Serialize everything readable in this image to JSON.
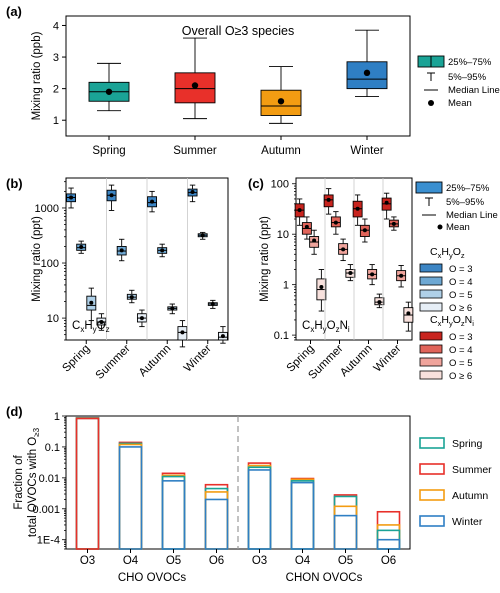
{
  "panel_labels": {
    "a": "(a)",
    "b": "(b)",
    "c": "(c)",
    "d": "(d)"
  },
  "legend_a": {
    "box": "25%–75%",
    "whisker": "5%–95%",
    "median": "Median Line",
    "mean": "Mean",
    "box_color": "#1aa396"
  },
  "legend_c": {
    "box": "25%–75%",
    "whisker": "5%–95%",
    "median": "Median Line",
    "mean": "Mean",
    "box_color": "#3a8fd0",
    "cho_title": "CₓHᵧO_z",
    "chon_title": "CₓHᵧO_zNᵢ",
    "cho_items": [
      {
        "label": "O = 3",
        "color": "#3c85c4"
      },
      {
        "label": "O = 4",
        "color": "#6ea8d3"
      },
      {
        "label": "O = 5",
        "color": "#afd0e8"
      },
      {
        "label": "O ≥ 6",
        "color": "#e6eef6"
      }
    ],
    "chon_items": [
      {
        "label": "O = 3",
        "color": "#c8241e"
      },
      {
        "label": "O = 4",
        "color": "#e0645a"
      },
      {
        "label": "O = 5",
        "color": "#f0a49c"
      },
      {
        "label": "O ≥ 6",
        "color": "#f8e1dd"
      }
    ]
  },
  "legend_d": [
    {
      "label": "Spring",
      "color": "#1aa396"
    },
    {
      "label": "Summer",
      "color": "#e8302a"
    },
    {
      "label": "Autumn",
      "color": "#f39c12"
    },
    {
      "label": "Winter",
      "color": "#2f7fc4"
    }
  ],
  "chart_data": [
    {
      "id": "a",
      "type": "box",
      "title": "Overall O≥3 species",
      "ylabel": "Mixing ratio (ppb)",
      "ylim": [
        0.5,
        4.3
      ],
      "yticks": [
        1,
        2,
        3,
        4
      ],
      "categories": [
        "Spring",
        "Summer",
        "Autumn",
        "Winter"
      ],
      "colors": [
        "#1aa396",
        "#e8302a",
        "#f39c12",
        "#2f7fc4"
      ],
      "boxes": [
        {
          "p5": 1.3,
          "q1": 1.6,
          "median": 1.9,
          "q3": 2.2,
          "p95": 2.8,
          "mean": 1.9
        },
        {
          "p5": 1.05,
          "q1": 1.55,
          "median": 2.0,
          "q3": 2.5,
          "p95": 3.6,
          "mean": 2.1
        },
        {
          "p5": 0.9,
          "q1": 1.15,
          "median": 1.45,
          "q3": 1.95,
          "p95": 2.7,
          "mean": 1.6
        },
        {
          "p5": 1.75,
          "q1": 2.0,
          "median": 2.3,
          "q3": 2.85,
          "p95": 3.85,
          "mean": 2.5
        }
      ]
    },
    {
      "id": "b",
      "type": "box",
      "scale": "log",
      "ylabel": "Mixing ratio (ppt)",
      "annotation": "CₓHᵧO_z",
      "ylim": [
        4,
        3500
      ],
      "yticks": [
        10,
        100,
        1000
      ],
      "ytick_labels": [
        "10",
        "100",
        "1000"
      ],
      "categories": [
        "Spring",
        "Summer",
        "Autumn",
        "Winter"
      ],
      "series": [
        {
          "name": "O = 3",
          "color": "#3c85c4",
          "boxes": [
            {
              "p5": 1000,
              "q1": 1300,
              "median": 1550,
              "q3": 1800,
              "p95": 2300,
              "mean": 1550
            },
            {
              "p5": 900,
              "q1": 1350,
              "median": 1700,
              "q3": 2100,
              "p95": 2600,
              "mean": 1700
            },
            {
              "p5": 850,
              "q1": 1050,
              "median": 1250,
              "q3": 1600,
              "p95": 2000,
              "mean": 1300
            },
            {
              "p5": 1300,
              "q1": 1650,
              "median": 1900,
              "q3": 2200,
              "p95": 2600,
              "mean": 1950
            }
          ]
        },
        {
          "name": "O = 4",
          "color": "#6ea8d3",
          "boxes": [
            {
              "p5": 150,
              "q1": 170,
              "median": 190,
              "q3": 220,
              "p95": 250,
              "mean": 195
            },
            {
              "p5": 110,
              "q1": 140,
              "median": 165,
              "q3": 200,
              "p95": 270,
              "mean": 170
            },
            {
              "p5": 130,
              "q1": 150,
              "median": 170,
              "q3": 190,
              "p95": 220,
              "mean": 170
            },
            {
              "p5": 270,
              "q1": 300,
              "median": 320,
              "q3": 340,
              "p95": 360,
              "mean": 320
            }
          ]
        },
        {
          "name": "O = 5",
          "color": "#afd0e8",
          "boxes": [
            {
              "p5": 9,
              "q1": 14,
              "median": 17,
              "q3": 25,
              "p95": 35,
              "mean": 19
            },
            {
              "p5": 19,
              "q1": 22,
              "median": 24,
              "q3": 27,
              "p95": 32,
              "mean": 24
            },
            {
              "p5": 12,
              "q1": 14,
              "median": 15,
              "q3": 16,
              "p95": 18,
              "mean": 15
            },
            {
              "p5": 15,
              "q1": 17,
              "median": 18,
              "q3": 19,
              "p95": 21,
              "mean": 18
            }
          ]
        },
        {
          "name": "O ≥ 6",
          "color": "#e6eef6",
          "boxes": [
            {
              "p5": 6,
              "q1": 7.5,
              "median": 8.5,
              "q3": 10,
              "p95": 12,
              "mean": 8.5
            },
            {
              "p5": 7,
              "q1": 8.5,
              "median": 10,
              "q3": 12,
              "p95": 14,
              "mean": 10
            },
            {
              "p5": 3,
              "q1": 4,
              "median": 5.5,
              "q3": 7,
              "p95": 9,
              "mean": 5.5
            },
            {
              "p5": 3.5,
              "q1": 4,
              "median": 4.5,
              "q3": 5.5,
              "p95": 7,
              "mean": 4.7
            }
          ]
        }
      ]
    },
    {
      "id": "c",
      "type": "box",
      "scale": "log",
      "ylabel": "Mixing ratio (ppt)",
      "annotation": "CₓHᵧO_zNᵢ",
      "ylim": [
        0.08,
        130
      ],
      "yticks": [
        0.1,
        1,
        10,
        100
      ],
      "ytick_labels": [
        "0.1",
        "1",
        "10",
        "100"
      ],
      "categories": [
        "Spring",
        "Summer",
        "Autumn",
        "Winter"
      ],
      "series": [
        {
          "name": "O = 3",
          "color": "#c8241e",
          "boxes": [
            {
              "p5": 15,
              "q1": 22,
              "median": 30,
              "q3": 40,
              "p95": 50,
              "mean": 30
            },
            {
              "p5": 25,
              "q1": 35,
              "median": 48,
              "q3": 60,
              "p95": 80,
              "mean": 48
            },
            {
              "p5": 15,
              "q1": 22,
              "median": 32,
              "q3": 45,
              "p95": 60,
              "mean": 32
            },
            {
              "p5": 20,
              "q1": 30,
              "median": 40,
              "q3": 52,
              "p95": 65,
              "mean": 42
            }
          ]
        },
        {
          "name": "O = 4",
          "color": "#e0645a",
          "boxes": [
            {
              "p5": 8,
              "q1": 10,
              "median": 13,
              "q3": 17,
              "p95": 22,
              "mean": 14
            },
            {
              "p5": 10,
              "q1": 14,
              "median": 17,
              "q3": 22,
              "p95": 28,
              "mean": 17
            },
            {
              "p5": 7,
              "q1": 9,
              "median": 12,
              "q3": 15,
              "p95": 20,
              "mean": 12
            },
            {
              "p5": 12,
              "q1": 14,
              "median": 16,
              "q3": 19,
              "p95": 22,
              "mean": 16
            }
          ]
        },
        {
          "name": "O = 5",
          "color": "#f0a49c",
          "boxes": [
            {
              "p5": 4,
              "q1": 5.5,
              "median": 7,
              "q3": 9,
              "p95": 12,
              "mean": 7.5
            },
            {
              "p5": 3,
              "q1": 4,
              "median": 5,
              "q3": 6.5,
              "p95": 8,
              "mean": 5
            },
            {
              "p5": 1,
              "q1": 1.3,
              "median": 1.6,
              "q3": 2,
              "p95": 2.5,
              "mean": 1.6
            },
            {
              "p5": 0.9,
              "q1": 1.2,
              "median": 1.5,
              "q3": 1.9,
              "p95": 2.4,
              "mean": 1.5
            }
          ]
        },
        {
          "name": "O ≥ 6",
          "color": "#f8e1dd",
          "boxes": [
            {
              "p5": 0.3,
              "q1": 0.5,
              "median": 0.8,
              "q3": 1.3,
              "p95": 2.0,
              "mean": 0.9
            },
            {
              "p5": 1.2,
              "q1": 1.4,
              "median": 1.7,
              "q3": 2.0,
              "p95": 2.5,
              "mean": 1.7
            },
            {
              "p5": 0.35,
              "q1": 0.4,
              "median": 0.45,
              "q3": 0.55,
              "p95": 0.65,
              "mean": 0.45
            },
            {
              "p5": 0.12,
              "q1": 0.18,
              "median": 0.25,
              "q3": 0.35,
              "p95": 0.45,
              "mean": 0.27
            }
          ]
        }
      ]
    },
    {
      "id": "d",
      "type": "bar",
      "scale": "log",
      "ylabel": "Fraction of total OVOCs with O≥3",
      "ylim": [
        5e-05,
        1
      ],
      "yticks": [
        0.0001,
        0.001,
        0.01,
        0.1,
        1
      ],
      "ytick_labels": [
        "1E-4",
        "0.001",
        "0.01",
        "0.1",
        "1"
      ],
      "categories": [
        "O3",
        "O4",
        "O5",
        "O6",
        "O3",
        "O4",
        "O5",
        "O6"
      ],
      "groups": [
        "CHO OVOCs",
        "CHON OVOCs"
      ],
      "series": [
        {
          "name": "Spring",
          "color": "#1aa396",
          "values": [
            0.84,
            0.13,
            0.011,
            0.0045,
            0.022,
            0.008,
            0.0025,
            0.0002
          ]
        },
        {
          "name": "Summer",
          "color": "#e8302a",
          "values": [
            0.83,
            0.14,
            0.014,
            0.006,
            0.03,
            0.0095,
            0.0028,
            0.0008
          ]
        },
        {
          "name": "Autumn",
          "color": "#f39c12",
          "values": [
            0.86,
            0.12,
            0.012,
            0.0035,
            0.025,
            0.009,
            0.0012,
            0.0003
          ]
        },
        {
          "name": "Winter",
          "color": "#2f7fc4",
          "values": [
            0.88,
            0.1,
            0.008,
            0.002,
            0.018,
            0.007,
            0.0006,
            0.0001
          ]
        }
      ]
    }
  ]
}
